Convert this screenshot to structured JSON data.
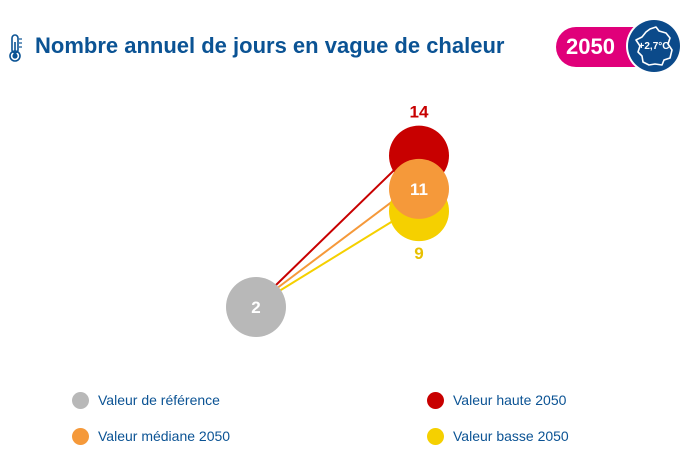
{
  "header": {
    "title": "Nombre annuel de jours en vague de chaleur",
    "thermometer_icon": "thermometer-icon",
    "year": "2050",
    "warming": "+2,7°C",
    "france_icon": "france-map-icon",
    "colors": {
      "title": "#0b5394",
      "year_badge": "#e0007a",
      "temp_badge": "#0b4a8a"
    }
  },
  "chart_data": {
    "type": "scatter",
    "title": "Nombre annuel de jours en vague de chaleur",
    "series": [
      {
        "name": "Valeur de référence",
        "value": 2,
        "label": "2",
        "color": "#b8b8b8"
      },
      {
        "name": "Valeur haute 2050",
        "value": 14,
        "label": "14",
        "color": "#c80000"
      },
      {
        "name": "Valeur médiane 2050",
        "value": 11,
        "label": "11",
        "color": "#f5993a"
      },
      {
        "name": "Valeur basse 2050",
        "value": 9,
        "label": "9",
        "color": "#f5d000"
      }
    ]
  },
  "legend": [
    {
      "label": "Valeur de référence",
      "color": "#b8b8b8"
    },
    {
      "label": "Valeur haute 2050",
      "color": "#c80000"
    },
    {
      "label": "Valeur médiane 2050",
      "color": "#f5993a"
    },
    {
      "label": "Valeur basse 2050",
      "color": "#f5d000"
    }
  ]
}
